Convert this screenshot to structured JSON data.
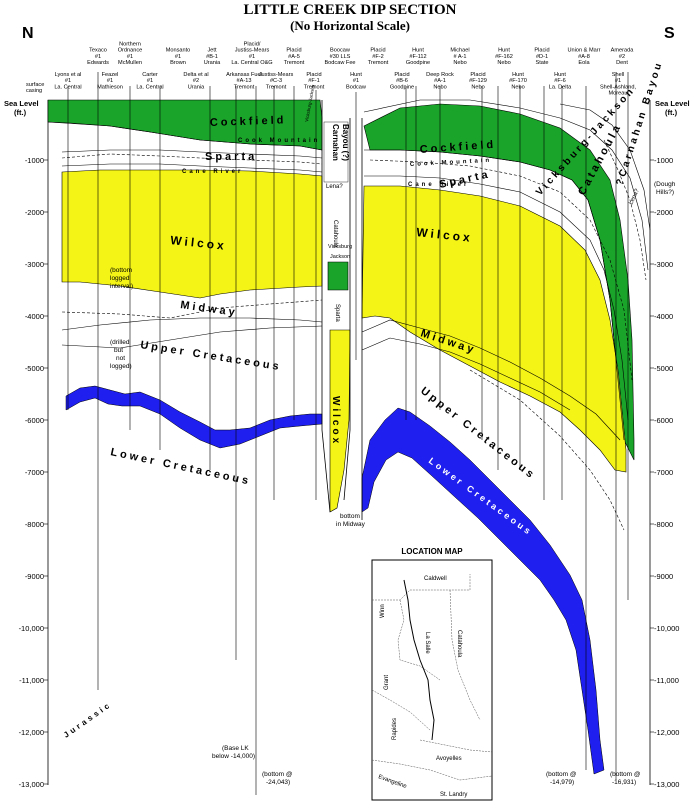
{
  "title": "LITTLE CREEK DIP SECTION",
  "subtitle": "(No Horizontal Scale)",
  "dir_left": "N",
  "dir_right": "S",
  "axis_label": [
    "Sea Level",
    "(ft.)"
  ],
  "depth_ticks": [
    "-1000",
    "-2000",
    "-3000",
    "-4000",
    "-5000",
    "-6000",
    "-7000",
    "-8000",
    "-9000",
    "-10,000",
    "-11,000",
    "-12,000",
    "-13,000"
  ],
  "surface_casing": [
    "surface",
    "casing"
  ],
  "wells_top": [
    [
      "Texaco",
      "#1",
      "Edwards"
    ],
    [
      "Northern",
      "Ordnance",
      "#1",
      "McMullen"
    ],
    [
      "Monsanto",
      "#1",
      "Brown"
    ],
    [
      "Jett",
      "#B-1",
      "Urania"
    ],
    [
      "Placid/",
      "Justiss-Mears",
      "#1",
      "La. Central O&G"
    ],
    [
      "Placid",
      "#A-5",
      "Tremont"
    ],
    [
      "Boocaw",
      "#30 LLS",
      "Bodcaw Fee"
    ],
    [
      "Placid",
      "#F-2",
      "Tremont"
    ],
    [
      "Hunt",
      "#F-112",
      "Goodpine"
    ],
    [
      "Michael",
      "# A-1",
      "Nebo"
    ],
    [
      "Hunt",
      "#F-162",
      "Nebo"
    ],
    [
      "Placid",
      "#D-1",
      "State"
    ],
    [
      "Union & Marr",
      "#A-8",
      "Eola"
    ],
    [
      "Amerada",
      "#2",
      "Dent"
    ]
  ],
  "wells_bottom": [
    [
      "Lyons et al",
      "#1",
      "La. Central"
    ],
    [
      "Feazel",
      "#1",
      "Mathieson"
    ],
    [
      "Carter",
      "#1",
      "La. Central"
    ],
    [
      "Delta et al",
      "#2",
      "Urania"
    ],
    [
      "Arkansas Fuel",
      "#A-13",
      "Tremont"
    ],
    [
      "Justiss-Mears",
      "#C-3",
      "Tremont"
    ],
    [
      "Placid",
      "#F-1",
      "Tremont"
    ],
    [
      "Hunt",
      "#1",
      "Bodcaw"
    ],
    [
      "Placid",
      "#B-6",
      "Goodpine"
    ],
    [
      "Deep Rock",
      "#A-1",
      "Nebo"
    ],
    [
      "Placid",
      "#F-129",
      "Nebo"
    ],
    [
      "Hunt",
      "#F-170",
      "Nebo"
    ],
    [
      "Hunt",
      "#F-6",
      "La. Delta"
    ],
    [
      "Shell",
      "#1",
      "Shell-Ashland,",
      "Moreau"
    ]
  ],
  "formations": {
    "cockfield": "Cockfield",
    "cook_mountain": "Cook Mountain",
    "sparta": "Sparta",
    "cane_river": "Cane River",
    "wilcox": "Wilcox",
    "midway": "Midway",
    "upper_cretaceous": "Upper Cretaceous",
    "lower_cretaceous": "Lower Cretaceous",
    "vicksburg_jackson": "Vicksburg-Jackson",
    "catahoula": "Catahoula",
    "carnahan_bayou": "?Carnahan Bayou",
    "jurassic": "Jurassic",
    "carnahan_fault_1": "Carnahan",
    "carnahan_fault_2": "Bayou (?)",
    "lena": "Lena?",
    "catahoula_fault": "Catahoula",
    "vicksburg_fault": "Vicksburg",
    "jackson_fault": "Jackson",
    "sparta_fault": "Sparta",
    "wilcox_fault": "Wilcox",
    "lena_right": "Lena?",
    "vicksburg_jackson_small": "Vicksburg-Jackson"
  },
  "notes": {
    "bottom_logged": [
      "(bottom",
      "logged",
      "interval)"
    ],
    "drilled_not_logged": [
      "(drilled",
      "but",
      "not",
      "logged)"
    ],
    "bottom_midway": [
      "bottom",
      "in Midway"
    ],
    "dough_hills": [
      "(Dough",
      "Hills?)"
    ],
    "base_lk": [
      "(Base LK",
      "below -14,000)"
    ],
    "bottom_24043": [
      "(bottom @",
      "-24,043)"
    ],
    "bottom_14979": [
      "(bottom @",
      "-14,979)"
    ],
    "bottom_16931": [
      "(bottom @",
      "-16,931)"
    ]
  },
  "location_map": {
    "title": "LOCATION MAP",
    "parishes": [
      "Caldwell",
      "Winn",
      "La Salle",
      "Catahoula",
      "Grant",
      "Rapides",
      "Avoyelles",
      "Evangeline",
      "St. Landry"
    ]
  },
  "colors": {
    "cockfield_green": "#1aa52a",
    "wilcox_yellow": "#f4f416",
    "cretaceous_blue": "#1f1ff0"
  }
}
